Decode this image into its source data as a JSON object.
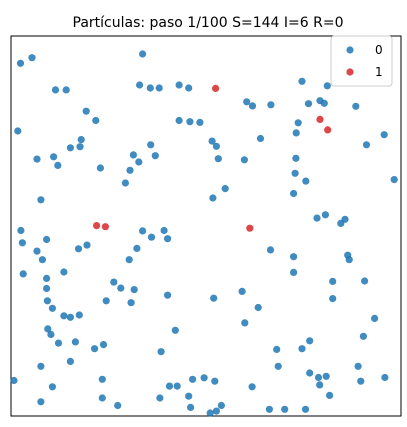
{
  "chart_data": {
    "type": "scatter",
    "title": "Partículas: paso 1/100  S=144 I=6 R=0",
    "xlabel": "",
    "ylabel": "",
    "xlim": [
      0,
      1
    ],
    "ylim": [
      0,
      1
    ],
    "axis_ticks": false,
    "grid": false,
    "legend_position": "top-right",
    "series": [
      {
        "name": "0",
        "color": "#1f77b4",
        "points": [
          [
            0.017,
            0.935
          ],
          [
            0.047,
            0.95
          ],
          [
            0.335,
            0.96
          ],
          [
            0.108,
            0.864
          ],
          [
            0.136,
            0.864
          ],
          [
            0.327,
            0.877
          ],
          [
            0.355,
            0.869
          ],
          [
            0.378,
            0.869
          ],
          [
            0.43,
            0.877
          ],
          [
            0.455,
            0.869
          ],
          [
            0.75,
            0.887
          ],
          [
            0.767,
            0.827
          ],
          [
            0.816,
            0.875
          ],
          [
            0.797,
            0.835
          ],
          [
            0.808,
            0.828
          ],
          [
            0.01,
            0.754
          ],
          [
            0.188,
            0.807
          ],
          [
            0.213,
            0.782
          ],
          [
            0.175,
            0.731
          ],
          [
            0.172,
            0.712
          ],
          [
            0.147,
            0.709
          ],
          [
            0.06,
            0.679
          ],
          [
            0.103,
            0.685
          ],
          [
            0.114,
            0.662
          ],
          [
            0.225,
            0.655
          ],
          [
            0.07,
            0.57
          ],
          [
            0.311,
            0.69
          ],
          [
            0.325,
            0.671
          ],
          [
            0.356,
            0.717
          ],
          [
            0.368,
            0.688
          ],
          [
            0.302,
            0.649
          ],
          [
            0.29,
            0.615
          ],
          [
            0.43,
            0.782
          ],
          [
            0.458,
            0.779
          ],
          [
            0.484,
            0.777
          ],
          [
            0.516,
            0.727
          ],
          [
            0.527,
            0.713
          ],
          [
            0.532,
            0.68
          ],
          [
            0.6,
            0.677
          ],
          [
            0.621,
            0.821
          ],
          [
            0.669,
            0.824
          ],
          [
            0.606,
            0.832
          ],
          [
            0.74,
            0.776
          ],
          [
            0.735,
            0.749
          ],
          [
            0.642,
            0.734
          ],
          [
            0.734,
            0.681
          ],
          [
            0.732,
            0.641
          ],
          [
            0.728,
            0.587
          ],
          [
            0.918,
            0.717
          ],
          [
            0.964,
            0.744
          ],
          [
            0.518,
            0.575
          ],
          [
            0.99,
            0.624
          ],
          [
            0.018,
            0.488
          ],
          [
            0.022,
            0.455
          ],
          [
            0.06,
            0.433
          ],
          [
            0.085,
            0.464
          ],
          [
            0.074,
            0.41
          ],
          [
            0.024,
            0.372
          ],
          [
            0.085,
            0.36
          ],
          [
            0.13,
            0.377
          ],
          [
            0.168,
            0.439
          ],
          [
            0.19,
            0.449
          ],
          [
            0.26,
            0.35
          ],
          [
            0.278,
            0.334
          ],
          [
            0.3,
            0.41
          ],
          [
            0.32,
            0.44
          ],
          [
            0.313,
            0.33
          ],
          [
            0.335,
            0.487
          ],
          [
            0.358,
            0.47
          ],
          [
            0.391,
            0.488
          ],
          [
            0.4,
            0.466
          ],
          [
            0.085,
            0.333
          ],
          [
            0.087,
            0.3
          ],
          [
            0.13,
            0.26
          ],
          [
            0.147,
            0.256
          ],
          [
            0.17,
            0.262
          ],
          [
            0.305,
            0.295
          ],
          [
            0.4,
            0.315
          ],
          [
            0.52,
            0.307
          ],
          [
            0.594,
            0.325
          ],
          [
            0.636,
            0.282
          ],
          [
            0.601,
            0.241
          ],
          [
            0.668,
            0.436
          ],
          [
            0.728,
            0.418
          ],
          [
            0.728,
            0.376
          ],
          [
            0.789,
            0.521
          ],
          [
            0.811,
            0.53
          ],
          [
            0.862,
            0.518
          ],
          [
            0.851,
            0.507
          ],
          [
            0.869,
            0.422
          ],
          [
            0.873,
            0.41
          ],
          [
            0.83,
            0.352
          ],
          [
            0.913,
            0.353
          ],
          [
            0.83,
            0.306
          ],
          [
            0.939,
            0.253
          ],
          [
            0.088,
            0.225
          ],
          [
            0.096,
            0.21
          ],
          [
            0.116,
            0.187
          ],
          [
            0.16,
            0.19
          ],
          [
            0.21,
            0.172
          ],
          [
            0.147,
            0.138
          ],
          [
            0.233,
            0.183
          ],
          [
            0.383,
            0.164
          ],
          [
            0.42,
            0.221
          ],
          [
            0.684,
            0.17
          ],
          [
            0.75,
            0.172
          ],
          [
            0.77,
            0.193
          ],
          [
            0.688,
            0.125
          ],
          [
            0.77,
            0.107
          ],
          [
            0.793,
            0.095
          ],
          [
            0.813,
            0.098
          ],
          [
            0.896,
            0.125
          ],
          [
            0.903,
            0.085
          ],
          [
            0.966,
            0.095
          ],
          [
            0.91,
            0.205
          ],
          [
            0.0,
            0.087
          ],
          [
            0.07,
            0.125
          ],
          [
            0.1,
            0.07
          ],
          [
            0.07,
            0.03
          ],
          [
            0.23,
            0.09
          ],
          [
            0.23,
            0.04
          ],
          [
            0.27,
            0.02
          ],
          [
            0.405,
            0.072
          ],
          [
            0.455,
            0.045
          ],
          [
            0.465,
            0.09
          ],
          [
            0.495,
            0.094
          ],
          [
            0.523,
            0.085
          ],
          [
            0.527,
            0.005
          ],
          [
            0.511,
            0.0
          ],
          [
            0.46,
            0.015
          ],
          [
            0.665,
            0.01
          ],
          [
            0.705,
            0.01
          ],
          [
            0.759,
            0.01
          ],
          [
            0.796,
            0.075
          ],
          [
            0.822,
            0.047
          ],
          [
            0.425,
            0.072
          ],
          [
            0.24,
            0.3
          ],
          [
            0.1,
            0.28
          ],
          [
            0.38,
            0.04
          ],
          [
            0.54,
            0.02
          ],
          [
            0.62,
            0.07
          ],
          [
            0.89,
            0.82
          ],
          [
            0.76,
            0.62
          ],
          [
            0.55,
            0.6
          ]
        ]
      },
      {
        "name": "1",
        "color": "#d62728",
        "points": [
          [
            0.525,
            0.868
          ],
          [
            0.797,
            0.785
          ],
          [
            0.817,
            0.757
          ],
          [
            0.215,
            0.501
          ],
          [
            0.238,
            0.498
          ],
          [
            0.614,
            0.494
          ]
        ]
      }
    ]
  }
}
